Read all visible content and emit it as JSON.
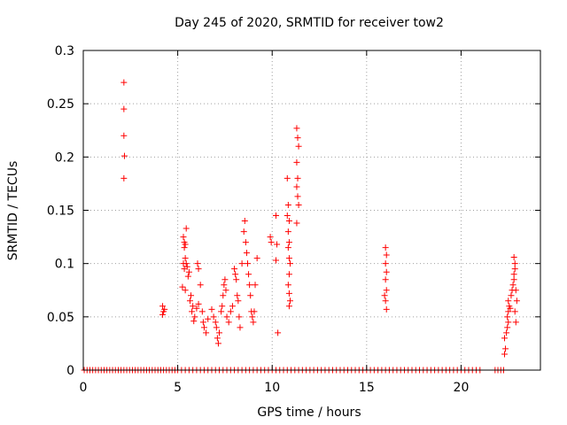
{
  "chart_data": {
    "type": "scatter",
    "title": "Day 245 of 2020, SRMTID for receiver tow2",
    "xlabel": "GPS time / hours",
    "ylabel": "SRMTID / TECUs",
    "xlim": [
      0,
      24.2
    ],
    "ylim": [
      0,
      0.3
    ],
    "grid": true,
    "marker": "+",
    "marker_color": "#ff0000",
    "xticks": [
      0,
      5,
      10,
      15,
      20
    ],
    "xtick_labels": [
      "0",
      "5",
      "10",
      "15",
      "20"
    ],
    "yticks": [
      0,
      0.05,
      0.1,
      0.15,
      0.2,
      0.25,
      0.3
    ],
    "ytick_labels": [
      "0",
      "0.05",
      "0.1",
      "0.15",
      "0.2",
      "0.25",
      "0.3"
    ],
    "series": [
      {
        "name": "SRMTID",
        "points": [
          [
            2.15,
            0.27
          ],
          [
            2.15,
            0.245
          ],
          [
            2.15,
            0.22
          ],
          [
            2.18,
            0.201
          ],
          [
            2.15,
            0.18
          ],
          [
            4.2,
            0.06
          ],
          [
            4.25,
            0.055
          ],
          [
            4.2,
            0.052
          ],
          [
            4.3,
            0.057
          ],
          [
            5.3,
            0.125
          ],
          [
            5.35,
            0.12
          ],
          [
            5.4,
            0.118
          ],
          [
            5.35,
            0.115
          ],
          [
            5.45,
            0.133
          ],
          [
            5.4,
            0.105
          ],
          [
            5.3,
            0.1
          ],
          [
            5.45,
            0.1
          ],
          [
            5.5,
            0.097
          ],
          [
            5.35,
            0.095
          ],
          [
            5.6,
            0.092
          ],
          [
            5.55,
            0.088
          ],
          [
            5.25,
            0.078
          ],
          [
            5.4,
            0.075
          ],
          [
            5.7,
            0.07
          ],
          [
            5.65,
            0.065
          ],
          [
            5.8,
            0.06
          ],
          [
            5.75,
            0.055
          ],
          [
            5.9,
            0.05
          ],
          [
            5.85,
            0.046
          ],
          [
            6.0,
            0.058
          ],
          [
            6.1,
            0.062
          ],
          [
            6.05,
            0.1
          ],
          [
            6.1,
            0.095
          ],
          [
            6.2,
            0.08
          ],
          [
            6.3,
            0.055
          ],
          [
            6.35,
            0.045
          ],
          [
            6.4,
            0.04
          ],
          [
            6.5,
            0.035
          ],
          [
            6.6,
            0.048
          ],
          [
            6.8,
            0.057
          ],
          [
            6.9,
            0.05
          ],
          [
            7.0,
            0.045
          ],
          [
            7.05,
            0.04
          ],
          [
            7.1,
            0.03
          ],
          [
            7.15,
            0.025
          ],
          [
            7.2,
            0.035
          ],
          [
            7.3,
            0.055
          ],
          [
            7.35,
            0.06
          ],
          [
            7.4,
            0.07
          ],
          [
            7.45,
            0.08
          ],
          [
            7.5,
            0.085
          ],
          [
            7.55,
            0.075
          ],
          [
            7.6,
            0.05
          ],
          [
            7.7,
            0.045
          ],
          [
            7.8,
            0.055
          ],
          [
            7.9,
            0.06
          ],
          [
            8.0,
            0.095
          ],
          [
            8.05,
            0.09
          ],
          [
            8.1,
            0.085
          ],
          [
            8.15,
            0.07
          ],
          [
            8.2,
            0.065
          ],
          [
            8.25,
            0.05
          ],
          [
            8.3,
            0.04
          ],
          [
            8.4,
            0.1
          ],
          [
            8.5,
            0.13
          ],
          [
            8.55,
            0.14
          ],
          [
            8.6,
            0.12
          ],
          [
            8.65,
            0.11
          ],
          [
            8.7,
            0.1
          ],
          [
            8.75,
            0.09
          ],
          [
            8.8,
            0.08
          ],
          [
            8.85,
            0.07
          ],
          [
            8.9,
            0.055
          ],
          [
            8.95,
            0.05
          ],
          [
            9.0,
            0.045
          ],
          [
            9.05,
            0.055
          ],
          [
            9.1,
            0.08
          ],
          [
            9.2,
            0.105
          ],
          [
            9.9,
            0.125
          ],
          [
            9.95,
            0.12
          ],
          [
            10.2,
            0.145
          ],
          [
            10.25,
            0.118
          ],
          [
            10.2,
            0.103
          ],
          [
            10.3,
            0.035
          ],
          [
            10.8,
            0.18
          ],
          [
            10.85,
            0.155
          ],
          [
            10.8,
            0.145
          ],
          [
            10.9,
            0.14
          ],
          [
            10.85,
            0.13
          ],
          [
            10.9,
            0.12
          ],
          [
            10.85,
            0.115
          ],
          [
            10.9,
            0.105
          ],
          [
            10.95,
            0.1
          ],
          [
            10.9,
            0.09
          ],
          [
            10.85,
            0.08
          ],
          [
            10.9,
            0.072
          ],
          [
            10.95,
            0.065
          ],
          [
            10.9,
            0.06
          ],
          [
            11.3,
            0.227
          ],
          [
            11.35,
            0.218
          ],
          [
            11.4,
            0.21
          ],
          [
            11.3,
            0.195
          ],
          [
            11.35,
            0.18
          ],
          [
            11.3,
            0.172
          ],
          [
            11.35,
            0.163
          ],
          [
            11.4,
            0.155
          ],
          [
            11.3,
            0.138
          ],
          [
            16.0,
            0.115
          ],
          [
            16.05,
            0.108
          ],
          [
            16.0,
            0.1
          ],
          [
            16.05,
            0.092
          ],
          [
            16.0,
            0.085
          ],
          [
            16.05,
            0.075
          ],
          [
            15.95,
            0.07
          ],
          [
            16.0,
            0.065
          ],
          [
            16.05,
            0.057
          ],
          [
            22.3,
            0.015
          ],
          [
            22.35,
            0.02
          ],
          [
            22.3,
            0.03
          ],
          [
            22.4,
            0.035
          ],
          [
            22.45,
            0.04
          ],
          [
            22.5,
            0.045
          ],
          [
            22.45,
            0.05
          ],
          [
            22.5,
            0.055
          ],
          [
            22.55,
            0.06
          ],
          [
            22.5,
            0.065
          ],
          [
            22.6,
            0.058
          ],
          [
            22.65,
            0.07
          ],
          [
            22.7,
            0.075
          ],
          [
            22.75,
            0.08
          ],
          [
            22.8,
            0.085
          ],
          [
            22.8,
            0.09
          ],
          [
            22.85,
            0.095
          ],
          [
            22.8,
            0.106
          ],
          [
            22.85,
            0.1
          ],
          [
            22.9,
            0.075
          ],
          [
            22.95,
            0.065
          ],
          [
            22.85,
            0.055
          ],
          [
            22.9,
            0.045
          ]
        ],
        "zero_ranges": [
          [
            0.05,
            5.0,
            0.15
          ],
          [
            5.2,
            13.3,
            0.2
          ],
          [
            13.4,
            21.0,
            0.2
          ],
          [
            21.8,
            22.3,
            0.15
          ]
        ]
      }
    ]
  }
}
